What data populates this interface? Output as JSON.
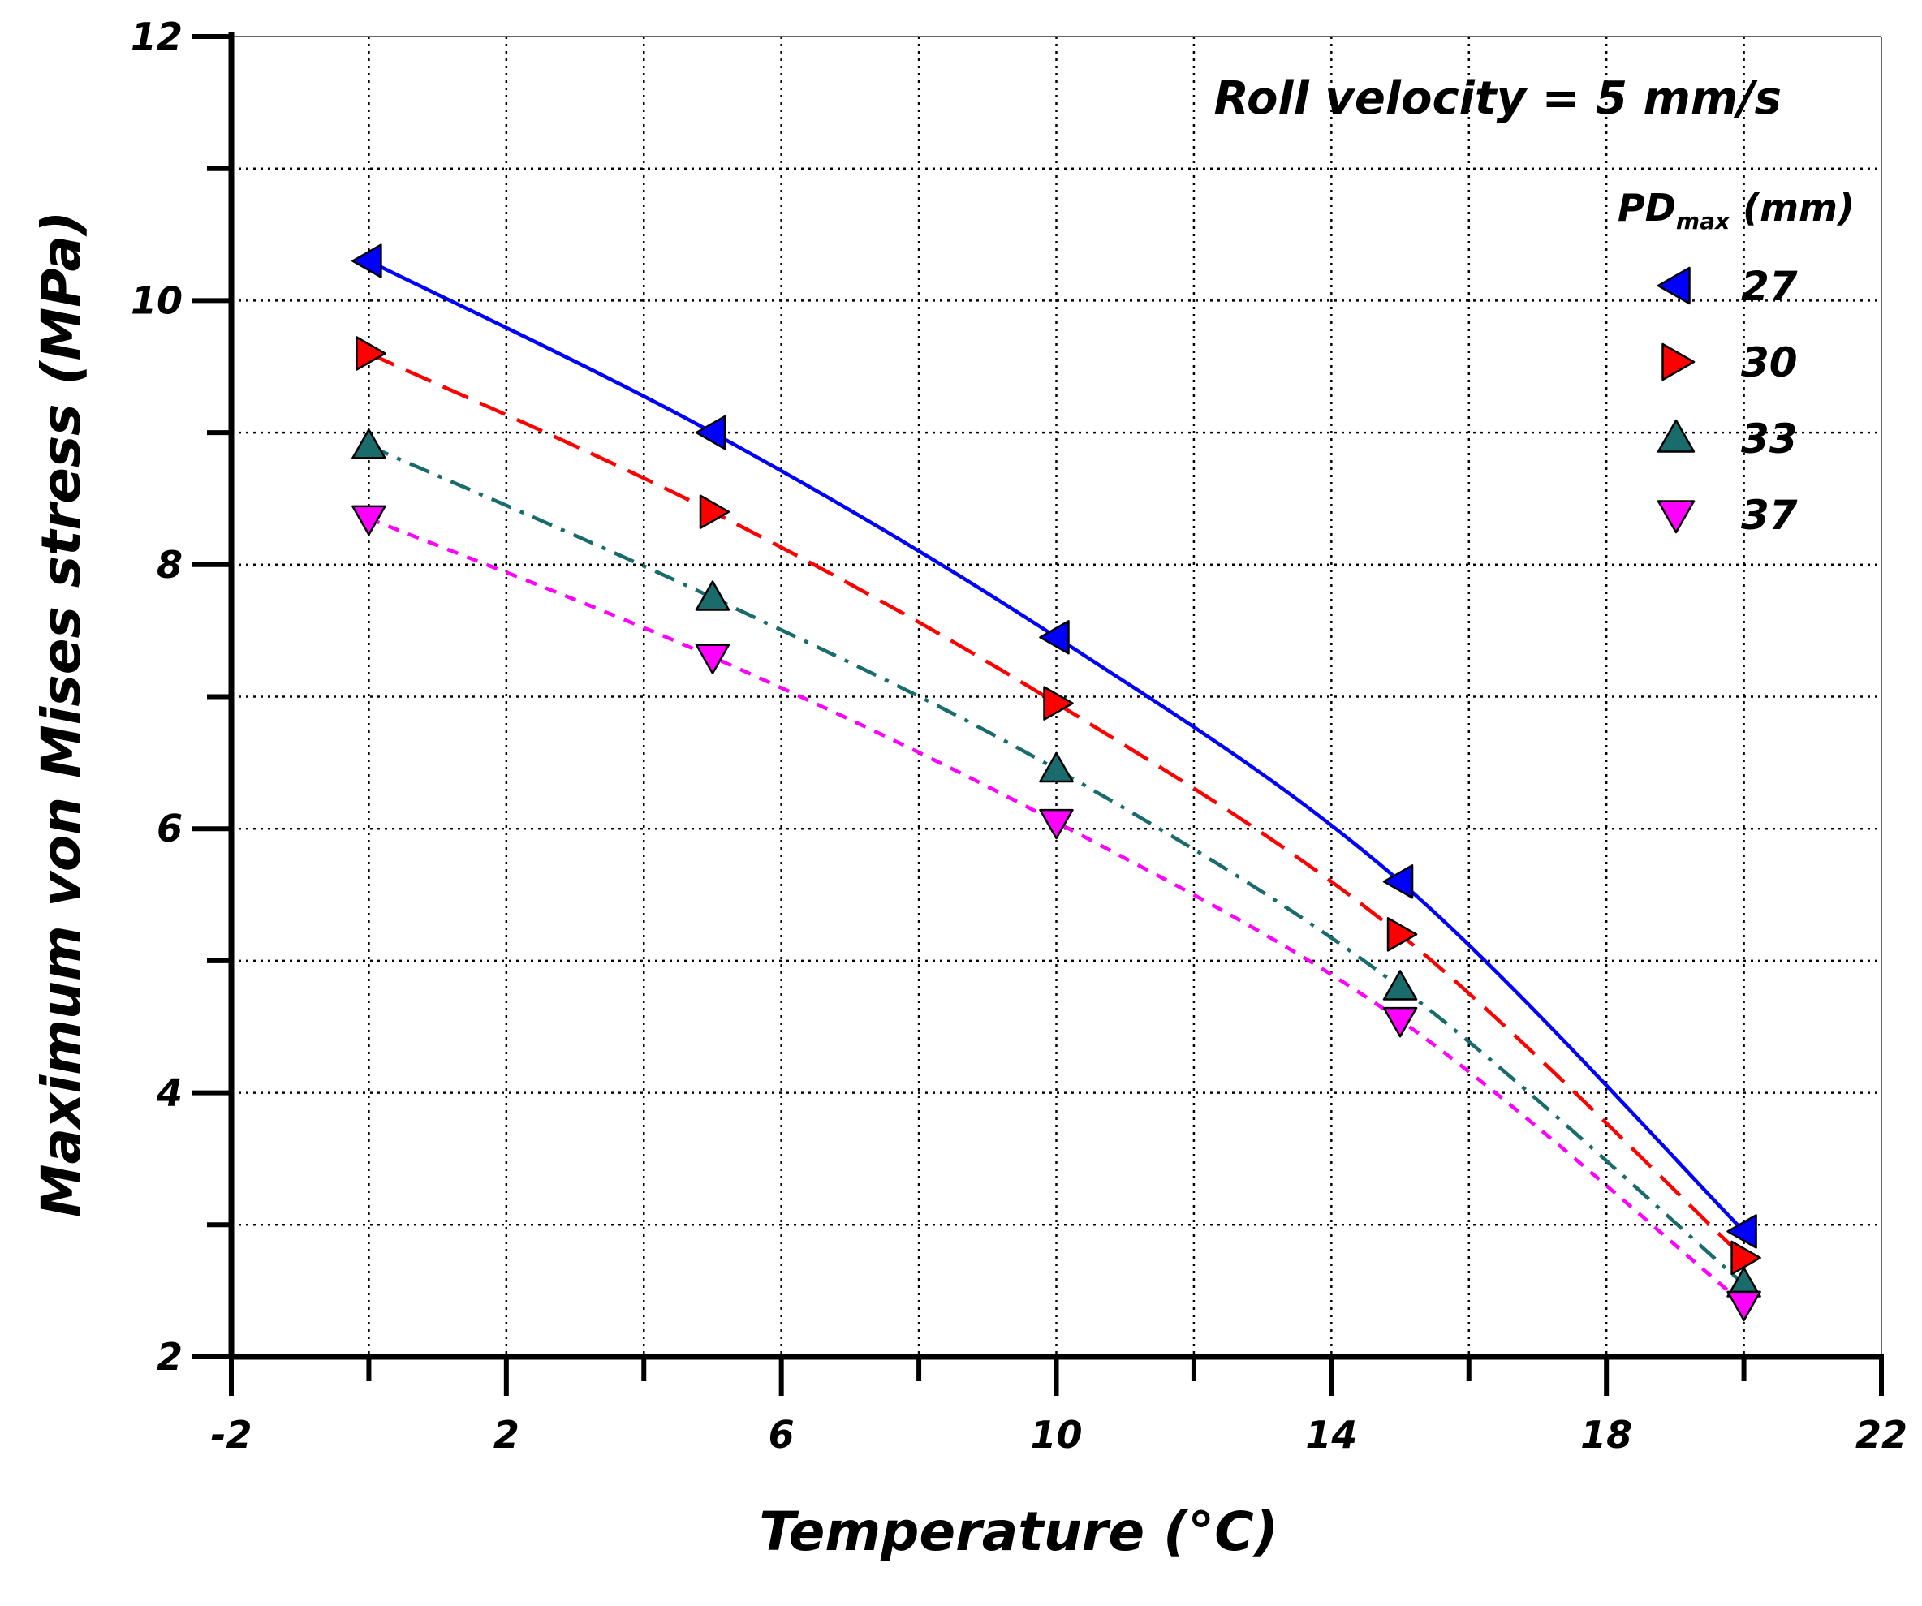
{
  "chart_data": {
    "type": "line",
    "title": "",
    "annotation": "Roll velocity = 5 mm/s",
    "xlabel": "Temperature (°C)",
    "ylabel": "Maximum von Mises stress (MPa)",
    "xlim": [
      -2,
      22
    ],
    "ylim": [
      2,
      12
    ],
    "xticks": [
      -2,
      2,
      6,
      10,
      14,
      18,
      22
    ],
    "xtick_labels": [
      "-2",
      "2",
      "6",
      "10",
      "14",
      "18",
      "22"
    ],
    "yticks": [
      2,
      4,
      6,
      8,
      10,
      12
    ],
    "ytick_labels": [
      "2",
      "4",
      "6",
      "8",
      "10",
      "12"
    ],
    "grid": true,
    "legend": {
      "title_main": "PD",
      "title_sub": "max",
      "title_unit": " (mm)",
      "placement": "right"
    },
    "x": [
      0,
      5,
      10,
      15,
      20
    ],
    "series": [
      {
        "name": "27",
        "values": [
          10.3,
          9.0,
          7.45,
          5.6,
          2.95
        ],
        "color": "#0000ff",
        "marker": "triangle-left",
        "line": "solid"
      },
      {
        "name": "30",
        "values": [
          9.6,
          8.4,
          6.95,
          5.2,
          2.75
        ],
        "color": "#ff0000",
        "marker": "triangle-right",
        "line": "dashed"
      },
      {
        "name": "33",
        "values": [
          8.9,
          7.75,
          6.45,
          4.8,
          2.55
        ],
        "color": "#1a6b6b",
        "marker": "triangle-up",
        "line": "dashdot"
      },
      {
        "name": "37",
        "values": [
          8.35,
          7.3,
          6.05,
          4.55,
          2.4
        ],
        "color": "#ff00ff",
        "marker": "triangle-down",
        "line": "dotted"
      }
    ]
  }
}
